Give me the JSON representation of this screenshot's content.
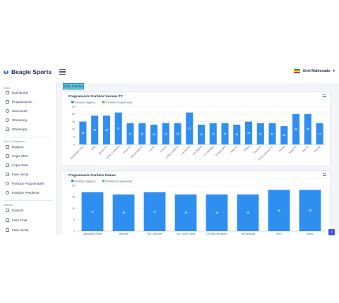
{
  "header": {
    "brand": "Beagle Sports",
    "user": "Ariel Maldonado"
  },
  "sidebar": {
    "sections": [
      {
        "label": "Inicio",
        "items": [
          "Dashboard",
          "Programación",
          "Sanciones",
          "Streaming",
          "WhatsApp"
        ]
      },
      {
        "label": "Todo Competidor",
        "items": [
          "Equipos",
          "Copa ORO",
          "Copa Plata",
          "Fase Inicial",
          "Partidos Programados",
          "Partidos Pendiente"
        ]
      },
      {
        "label": "Damas",
        "items": [
          "Equipos",
          "Fase Final",
          "Fase Inicial"
        ]
      }
    ]
  },
  "main": {
    "tab_label": "Grilla Partidos"
  },
  "chart_data": [
    {
      "type": "bar",
      "title": "Programación Partidos Varones TC",
      "legend": [
        "Partidos Jugados",
        "Partidos Programados"
      ],
      "legend_position": "top-left",
      "ylim": [
        0,
        25
      ],
      "yticks": [
        0,
        5,
        10,
        15,
        20,
        25
      ],
      "grid": true,
      "categories": [
        "Agrupación Pinar",
        "Bolic",
        "Brusco FC",
        "Cheer Caravana",
        "Doom FC",
        "Electricidad FC",
        "Leones",
        "Lomitos",
        "Lomas Cubanos",
        "Los Brozas",
        "Los Pepitos",
        "Los Santiago",
        "Pampa Siete",
        "Pilas FC",
        "Pillape",
        "Pingüinos",
        "Puerto Antunez FC",
        "Reales",
        "Sagaz FC",
        "Ses FC",
        "Victoria"
      ],
      "series": [
        {
          "name": "Partidos Jugados",
          "values": [
            15,
            19,
            19,
            21,
            14,
            14,
            13,
            14,
            14,
            21,
            13,
            14,
            14,
            13,
            15,
            14,
            14,
            12,
            20,
            20,
            14
          ],
          "color": "#2f8ff0"
        }
      ]
    },
    {
      "type": "bar",
      "title": "Programación Partidos Damas",
      "legend": [
        "Partidos Jugados",
        "Partidos Programados"
      ],
      "legend_position": "top-left",
      "ylim": [
        0,
        20
      ],
      "yticks": [
        0,
        5,
        10,
        15,
        20
      ],
      "grid": true,
      "categories": [
        "Agrupación Pinar",
        "Almenas",
        "Esc. Sportsan",
        "Esc. Victor Lanus",
        "La Mina Hernández",
        "Las Medusas",
        "MKS",
        "Wemy"
      ],
      "series": [
        {
          "name": "Partidos Jugados",
          "values": [
            17,
            16,
            17,
            16,
            16,
            16,
            18,
            18
          ],
          "color": "#2f8ff0"
        }
      ]
    }
  ],
  "colors": {
    "accent": "#2f8ff0",
    "brand": "#1e66d6",
    "tab": "#5ec4e7",
    "legend2": "#5cc26a"
  },
  "icons": [
    "beagle-logo-icon",
    "hamburger-icon",
    "flag-icon",
    "chevron-down-icon",
    "menu-lines-icon",
    "scroll-top-icon"
  ]
}
